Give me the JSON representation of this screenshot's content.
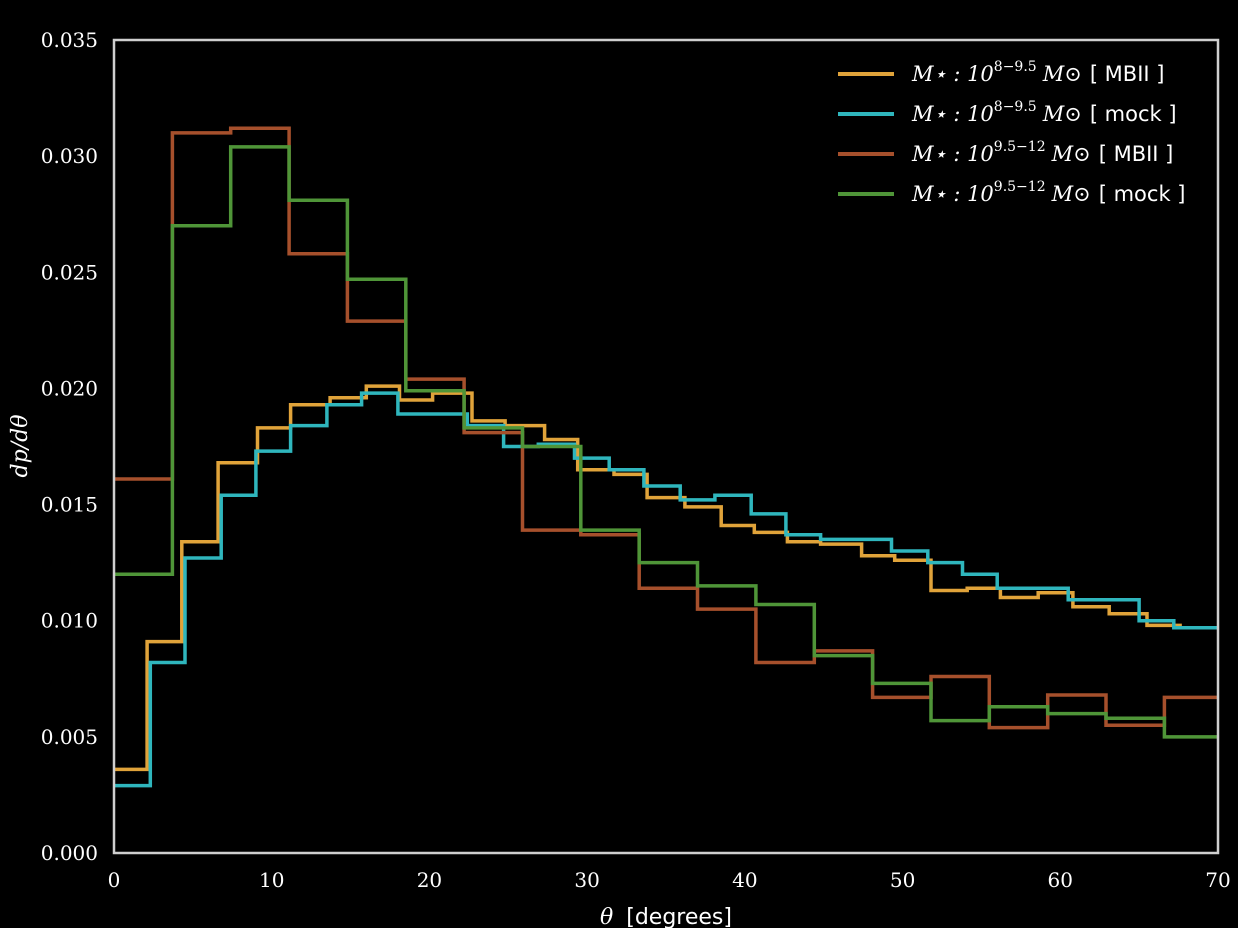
{
  "chart_data": {
    "type": "line",
    "step": true,
    "xlabel": "θ [degrees]",
    "xlabel_var": "θ",
    "xlabel_unit": "[degrees]",
    "ylabel": "dp/dθ",
    "xlim": [
      0,
      70
    ],
    "ylim": [
      0.0,
      0.035
    ],
    "xticks": [
      0,
      10,
      20,
      30,
      40,
      50,
      60,
      70
    ],
    "xtick_labels": [
      "0",
      "10",
      "20",
      "30",
      "40",
      "50",
      "60",
      "70"
    ],
    "yticks": [
      0.0,
      0.005,
      0.01,
      0.015,
      0.02,
      0.025,
      0.03,
      0.035
    ],
    "ytick_labels": [
      "0.000",
      "0.005",
      "0.010",
      "0.015",
      "0.020",
      "0.025",
      "0.030",
      "0.035"
    ],
    "grid": false,
    "legend_position": "top-right",
    "bin_edges": [
      0,
      2.2,
      4.4,
      6.6,
      8.8,
      11.0,
      13.2,
      15.4,
      17.6,
      19.8,
      22.0,
      24.2,
      26.4,
      28.6,
      30.8,
      33.0,
      35.2,
      37.4,
      39.6,
      41.8,
      44.0,
      46.2,
      48.4,
      50.6,
      52.8,
      55.0,
      57.2,
      59.4,
      61.6,
      63.8,
      66.0,
      68.2,
      70
    ],
    "series": [
      {
        "name": "M⋆ : 10^8−9.5 M⊙ [ MBII ]",
        "label_prefix": "M⋆ : 10",
        "label_exp": "8−9.5",
        "label_suffix": "M⊙",
        "label_tag": "[ MBII ]",
        "color": "#e0a33a",
        "edges": [
          0,
          2.1,
          4.3,
          6.6,
          9.1,
          11.2,
          13.7,
          16.0,
          18.1,
          20.2,
          22.7,
          24.8,
          27.3,
          29.4,
          31.7,
          33.8,
          36.2,
          38.5,
          40.6,
          42.7,
          44.8,
          47.4,
          49.5,
          51.8,
          54.1,
          56.2,
          58.6,
          60.8,
          63.1,
          65.5,
          67.6,
          70
        ],
        "values": [
          0.0036,
          0.0091,
          0.0134,
          0.0168,
          0.0183,
          0.0193,
          0.0196,
          0.0201,
          0.0195,
          0.0198,
          0.0186,
          0.0184,
          0.0178,
          0.0165,
          0.0163,
          0.0153,
          0.0149,
          0.0141,
          0.0138,
          0.0134,
          0.0133,
          0.0128,
          0.0126,
          0.0113,
          0.0114,
          0.011,
          0.0112,
          0.0106,
          0.0103,
          0.0098,
          0.0097
        ]
      },
      {
        "name": "M⋆ : 10^8−9.5 M⊙ [ mock ]",
        "label_prefix": "M⋆ : 10",
        "label_exp": "8−9.5",
        "label_suffix": "M⊙",
        "label_tag": "[ mock ]",
        "color": "#2fb6bd",
        "edges": [
          0,
          2.3,
          4.5,
          6.8,
          9.0,
          11.2,
          13.5,
          15.7,
          18.0,
          20.2,
          22.4,
          24.7,
          26.9,
          29.2,
          31.4,
          33.6,
          35.9,
          38.1,
          40.4,
          42.6,
          44.8,
          47.1,
          49.3,
          51.6,
          53.8,
          56.0,
          58.3,
          60.5,
          62.8,
          65.0,
          67.2,
          70
        ],
        "values": [
          0.0029,
          0.0082,
          0.0127,
          0.0154,
          0.0173,
          0.0184,
          0.0193,
          0.0198,
          0.0189,
          0.0189,
          0.0184,
          0.0175,
          0.0176,
          0.017,
          0.0165,
          0.0158,
          0.0152,
          0.0154,
          0.0146,
          0.0137,
          0.0135,
          0.0135,
          0.013,
          0.0125,
          0.012,
          0.0114,
          0.0114,
          0.0109,
          0.0109,
          0.01,
          0.0097
        ]
      },
      {
        "name": "M⋆ : 10^9.5−12 M⊙ [ MBII ]",
        "label_prefix": "M⋆ : 10",
        "label_exp": "9.5−12",
        "label_suffix": "M⊙",
        "label_tag": "[ MBII ]",
        "color": "#a6502c",
        "edges": [
          0,
          3.7,
          7.4,
          11.1,
          14.8,
          18.5,
          22.2,
          25.9,
          29.6,
          33.3,
          37.0,
          40.7,
          44.4,
          48.1,
          51.8,
          55.5,
          59.2,
          62.9,
          66.6,
          70
        ],
        "values": [
          0.0161,
          0.031,
          0.0312,
          0.0258,
          0.0229,
          0.0204,
          0.0181,
          0.0139,
          0.0137,
          0.0114,
          0.0105,
          0.0082,
          0.0087,
          0.0067,
          0.0076,
          0.0054,
          0.0068,
          0.0055,
          0.0067
        ]
      },
      {
        "name": "M⋆ : 10^9.5−12 M⊙ [ mock ]",
        "label_prefix": "M⋆ : 10",
        "label_exp": "9.5−12",
        "label_suffix": "M⊙",
        "label_tag": "[ mock ]",
        "color": "#4f9538",
        "edges": [
          0,
          3.7,
          7.4,
          11.1,
          14.8,
          18.5,
          22.2,
          25.9,
          29.6,
          33.3,
          37.0,
          40.7,
          44.4,
          48.1,
          51.8,
          55.5,
          59.2,
          62.9,
          66.6,
          70
        ],
        "values": [
          0.012,
          0.027,
          0.0304,
          0.0281,
          0.0247,
          0.0199,
          0.0183,
          0.0175,
          0.0139,
          0.0125,
          0.0115,
          0.0107,
          0.0085,
          0.0073,
          0.0057,
          0.0063,
          0.006,
          0.0058,
          0.005
        ]
      }
    ]
  }
}
